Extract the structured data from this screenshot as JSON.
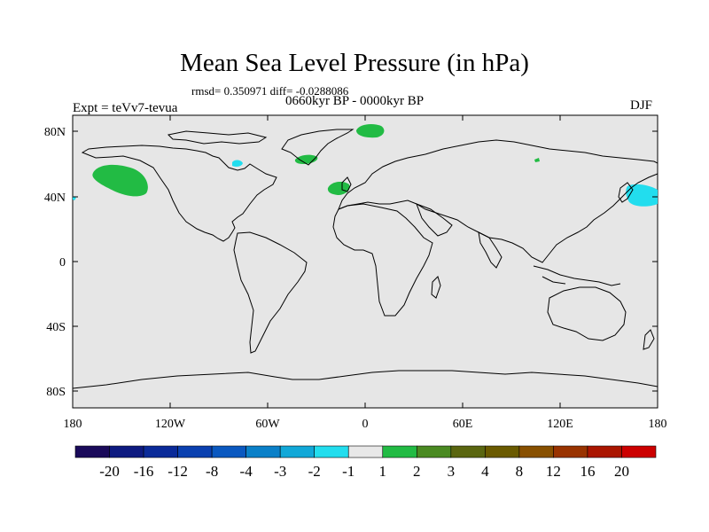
{
  "title": "Mean Sea Level Pressure (in hPa)",
  "stats_line": "rmsd= 0.350971 diff= -0.0288086",
  "period_line": "0660kyr BP - 0000kyr BP",
  "experiment_label": "Expt = teVv7-tevua",
  "season_label": "DJF",
  "colors": {
    "ocean_background": "#e6e6e6",
    "coastline": "#000000",
    "positive_anomaly": "#22bb44",
    "negative_anomaly": "#22ddee"
  },
  "lat_ticks": [
    "80N",
    "40N",
    "0",
    "40S",
    "80S"
  ],
  "lon_ticks": [
    "180",
    "120W",
    "60W",
    "0",
    "60E",
    "120E",
    "180"
  ],
  "colorbar": {
    "colors": [
      "#1a0a5a",
      "#0d1a80",
      "#0a2a99",
      "#0a40b0",
      "#0a58c0",
      "#0a80c8",
      "#11a8d8",
      "#22ddee",
      "#e8e8e8",
      "#22bb44",
      "#4a8a22",
      "#5a6610",
      "#6a5a00",
      "#885000",
      "#993300",
      "#aa1500",
      "#cc0000"
    ],
    "labels": [
      "-20",
      "-16",
      "-12",
      "-8",
      "-4",
      "-3",
      "-2",
      "-1",
      "1",
      "2",
      "3",
      "4",
      "8",
      "12",
      "16",
      "20"
    ]
  }
}
